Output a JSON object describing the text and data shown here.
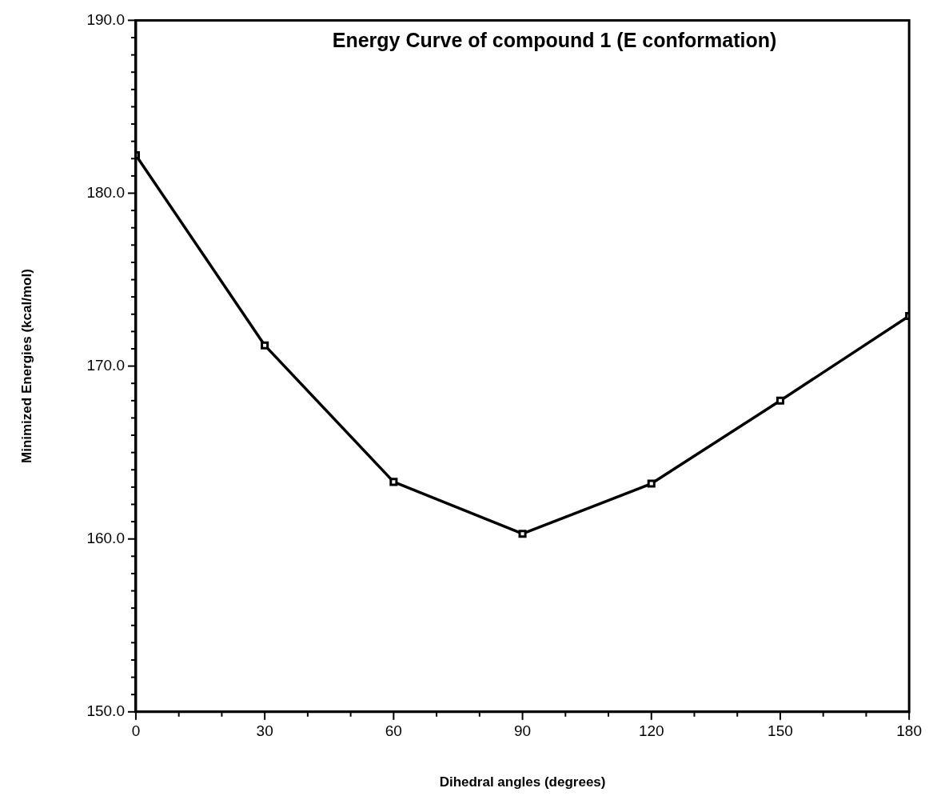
{
  "chart_data": {
    "type": "line",
    "title": "Energy Curve of compound 1 (E conformation)",
    "xlabel": "Dihedral angles (degrees)",
    "ylabel": "Minimized Energies (kcal/mol)",
    "x": [
      0,
      30,
      60,
      90,
      120,
      150,
      180
    ],
    "series": [
      {
        "color": "#000000",
        "values": [
          182.2,
          171.2,
          163.3,
          160.3,
          163.2,
          168.0,
          172.9
        ]
      }
    ],
    "xlim": [
      0,
      180
    ],
    "xticks": [
      0,
      {
        "value": 10,
        "label": null
      },
      {
        "value": 20,
        "label": null
      },
      30,
      {
        "value": 40,
        "label": null
      },
      {
        "value": 50,
        "label": null
      },
      60,
      {
        "value": 70,
        "label": null
      },
      {
        "value": 80,
        "label": null
      },
      90,
      {
        "value": 100,
        "label": null
      },
      {
        "value": 110,
        "label": null
      },
      120,
      {
        "value": 130,
        "label": null
      },
      {
        "value": 140,
        "label": null
      },
      150,
      {
        "value": 160,
        "label": null
      },
      {
        "value": 170,
        "label": null
      },
      180
    ],
    "ylim": [
      150,
      190
    ],
    "yticks": [
      {
        "value": 150,
        "label": "150.0"
      },
      {
        "value": 151,
        "label": null
      },
      {
        "value": 152,
        "label": null
      },
      {
        "value": 153,
        "label": null
      },
      {
        "value": 154,
        "label": null
      },
      {
        "value": 155,
        "label": null
      },
      {
        "value": 156,
        "label": null
      },
      {
        "value": 157,
        "label": null
      },
      {
        "value": 158,
        "label": null
      },
      {
        "value": 159,
        "label": null
      },
      {
        "value": 160,
        "label": "160.0"
      },
      {
        "value": 161,
        "label": null
      },
      {
        "value": 162,
        "label": null
      },
      {
        "value": 163,
        "label": null
      },
      {
        "value": 164,
        "label": null
      },
      {
        "value": 165,
        "label": null
      },
      {
        "value": 166,
        "label": null
      },
      {
        "value": 167,
        "label": null
      },
      {
        "value": 168,
        "label": null
      },
      {
        "value": 169,
        "label": null
      },
      {
        "value": 170,
        "label": "170.0"
      },
      {
        "value": 171,
        "label": null
      },
      {
        "value": 172,
        "label": null
      },
      {
        "value": 173,
        "label": null
      },
      {
        "value": 174,
        "label": null
      },
      {
        "value": 175,
        "label": null
      },
      {
        "value": 176,
        "label": null
      },
      {
        "value": 177,
        "label": null
      },
      {
        "value": 178,
        "label": null
      },
      {
        "value": 179,
        "label": null
      },
      {
        "value": 180,
        "label": "180.0"
      },
      {
        "value": 181,
        "label": null
      },
      {
        "value": 182,
        "label": null
      },
      {
        "value": 183,
        "label": null
      },
      {
        "value": 184,
        "label": null
      },
      {
        "value": 185,
        "label": null
      },
      {
        "value": 186,
        "label": null
      },
      {
        "value": 187,
        "label": null
      },
      {
        "value": 188,
        "label": null
      },
      {
        "value": 189,
        "label": null
      },
      {
        "value": 190,
        "label": "190.0"
      }
    ],
    "grid": false,
    "legend": false,
    "marker": "square",
    "line_style": "solid"
  }
}
